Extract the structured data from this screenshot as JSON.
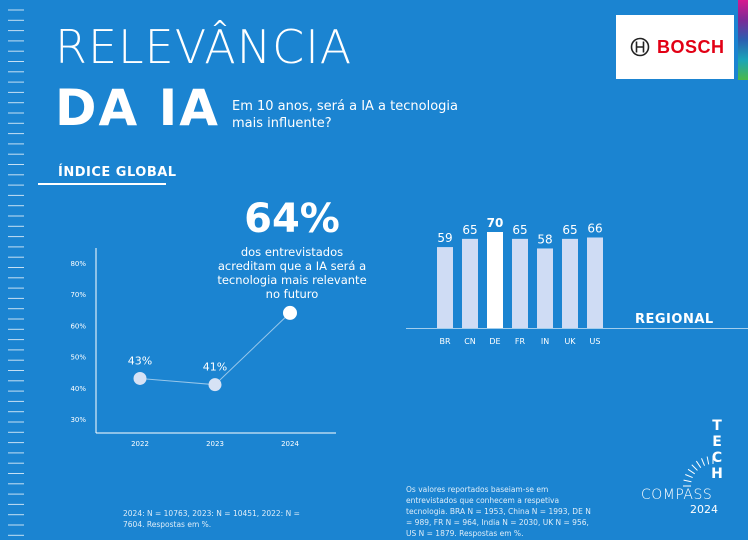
{
  "header": {
    "title_line1": "RELEVÂNCIA",
    "title_line2": "DA IA",
    "question": "Em 10 anos, será a IA a tecnologia mais influente?"
  },
  "logo": {
    "text": "BOSCH",
    "icon": "bosch-armature-icon",
    "brand_color": "#e20015"
  },
  "colors": {
    "background": "#1b84d1",
    "bar": "#cfdcf4",
    "bar_highlight": "#ffffff",
    "point": "#d6e2f5"
  },
  "global": {
    "section_label": "ÍNDICE GLOBAL",
    "headline_value": "64%",
    "headline_text": "dos entrevistados acreditam que a IA será a tecnologia mais relevante no futuro",
    "footnote": "2024: N = 10763, 2023: N = 10451, 2022: N = 7604. Respostas em %."
  },
  "regional": {
    "section_label": "REGIONAL",
    "footnote": "Os valores reportados baseiam-se em entrevistados que conhecem a respetiva tecnologia. BRA N = 1953, China N = 1993, DE N = 989, FR N = 964, India N = 2030, UK N = 956, US N = 1879. Respostas em %."
  },
  "branding": {
    "tech_letters": [
      "T",
      "E",
      "C",
      "H"
    ],
    "compass": "COMPASS",
    "year": "2024"
  },
  "chart_data": [
    {
      "type": "line",
      "title": "",
      "x": [
        "2022",
        "2023",
        "2024"
      ],
      "values": [
        43,
        41,
        64
      ],
      "point_labels": [
        "43%",
        "41%",
        ""
      ],
      "yticks": [
        "30%",
        "40%",
        "50%",
        "60%",
        "70%",
        "80%"
      ],
      "ylim": [
        30,
        80
      ],
      "xlabel": "",
      "ylabel": "",
      "grid": false
    },
    {
      "type": "bar",
      "title": "",
      "categories": [
        "BR",
        "CN",
        "DE",
        "FR",
        "IN",
        "UK",
        "US"
      ],
      "values": [
        59,
        65,
        70,
        65,
        58,
        65,
        66
      ],
      "highlight": "DE",
      "xlabel": "",
      "ylabel": "",
      "grid": false
    }
  ]
}
